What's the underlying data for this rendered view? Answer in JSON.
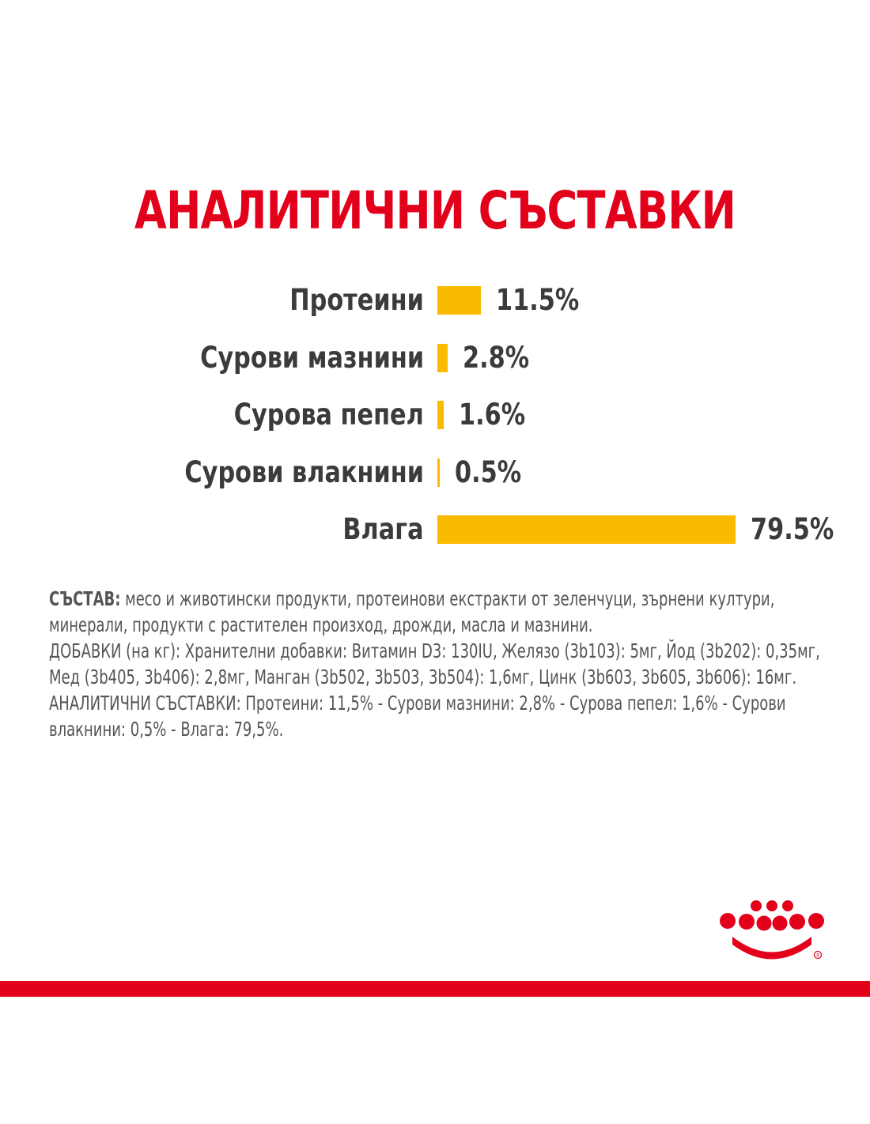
{
  "colors": {
    "title": "#e2001a",
    "bar": "#fbb900",
    "brand_red": "#e2001a"
  },
  "chart_data": {
    "type": "bar",
    "orientation": "horizontal",
    "title": "АНАЛИТИЧНИ СЪСТАВКИ",
    "categories": [
      "Протеини",
      "Сурови мазнини",
      "Сурова пепел",
      "Сурови влакнини",
      "Влага"
    ],
    "values": [
      11.5,
      2.8,
      1.6,
      0.5,
      79.5
    ],
    "value_labels": [
      "11.5%",
      "2.8%",
      "1.6%",
      "0.5%",
      "79.5%"
    ],
    "unit": "%",
    "xlim": [
      0,
      79.5
    ],
    "grid": false,
    "legend": "none"
  },
  "composition": {
    "heading": "СЪСТАВ:",
    "ingredients": "месо и животински продукти, протеинови екстракти от зеленчуци, зърнени култури, минерали, продукти с растителен произход, дрожди, масла и мазнини.",
    "additives": "ДОБАВКИ (на кг): Хранителни добавки: Витамин D3: 130IU, Желязо (3b103): 5мг, Йод (3b202): 0,35мг, Мед (3b405, 3b406): 2,8мг, Манган (3b502, 3b503, 3b504): 1,6мг, Цинк (3b603, 3b605, 3b606): 16мг.",
    "analytical": "АНАЛИТИЧНИ СЪСТАВКИ: Протеини: 11,5% - Сурови мазнини: 2,8% - Сурова пепел: 1,6% - Сурови влакнини: 0,5% - Влага: 79,5%."
  },
  "logo": {
    "icon": "crown-icon",
    "trademark": "®"
  }
}
